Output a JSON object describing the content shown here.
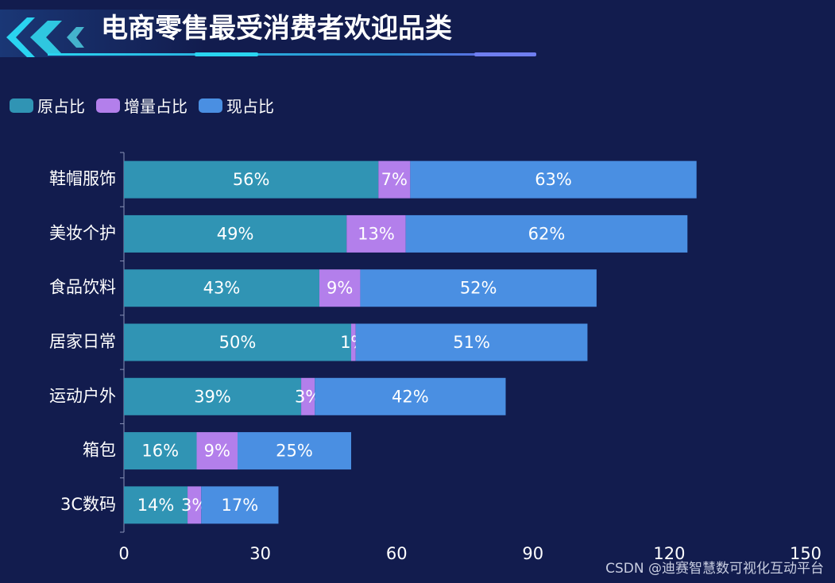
{
  "page": {
    "title": "电商零售最受消费者欢迎品类",
    "watermark": "CSDN @迪赛智慧数可视化互动平台"
  },
  "chart_data": {
    "type": "bar",
    "orientation": "horizontal",
    "stacked": true,
    "title": "电商零售最受消费者欢迎品类",
    "categories": [
      "鞋帽服饰",
      "美妆个护",
      "食品饮料",
      "居家日常",
      "运动户外",
      "箱包",
      "3C数码"
    ],
    "series": [
      {
        "name": "原占比",
        "color": "#3094b4",
        "values": [
          56,
          49,
          43,
          50,
          39,
          16,
          14
        ],
        "labels": [
          "56%",
          "49%",
          "43%",
          "50%",
          "39%",
          "16%",
          "14%"
        ]
      },
      {
        "name": "增量占比",
        "color": "#b37feb",
        "values": [
          7,
          13,
          9,
          1,
          3,
          9,
          3
        ],
        "labels": [
          "7%",
          "13%",
          "9%",
          "1%",
          "3%",
          "9%",
          "3%"
        ]
      },
      {
        "name": "现占比",
        "color": "#4a8fe2",
        "values": [
          63,
          62,
          52,
          51,
          42,
          25,
          17
        ],
        "labels": [
          "63%",
          "62%",
          "52%",
          "51%",
          "42%",
          "25%",
          "17%"
        ]
      }
    ],
    "xlim": [
      0,
      150
    ],
    "xticks": [
      "0",
      "30",
      "60",
      "90",
      "120",
      "150"
    ],
    "legend": "top-left",
    "grid": false
  }
}
